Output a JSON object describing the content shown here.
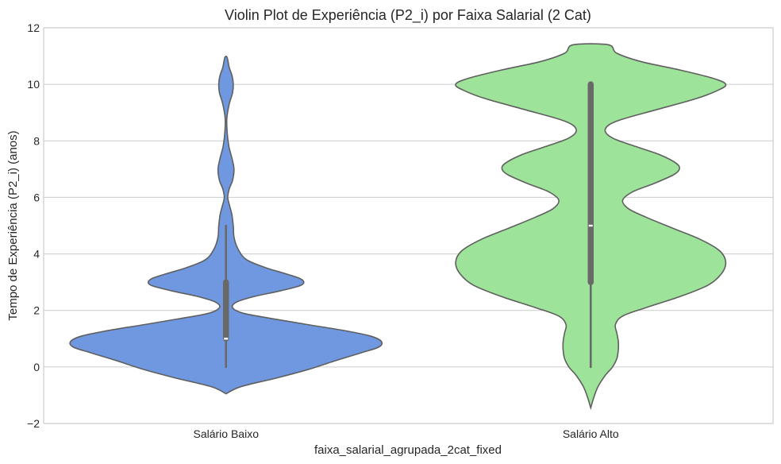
{
  "chart_data": {
    "type": "violin",
    "title": "Violin Plot de Experiência (P2_i) por Faixa Salarial (2 Cat)",
    "xlabel": "faixa_salarial_agrupada_2cat_fixed",
    "ylabel": "Tempo de Experiência (P2_i) (anos)",
    "ylim": [
      -2,
      12
    ],
    "yticks": [
      -2,
      0,
      2,
      4,
      6,
      8,
      10,
      12
    ],
    "ytick_labels": [
      "−2",
      "0",
      "2",
      "4",
      "6",
      "8",
      "10",
      "12"
    ],
    "grid": true,
    "categories": [
      "Salário Baixo",
      "Salário Alto"
    ],
    "series": [
      {
        "category": "Salário Baixo",
        "color": "#6f98e0",
        "box": {
          "min": 0,
          "q1": 1,
          "median": 1,
          "q3": 3,
          "max": 5
        },
        "density": [
          [
            -0.95,
            0.0
          ],
          [
            -0.7,
            0.1
          ],
          [
            -0.4,
            0.34
          ],
          [
            -0.1,
            0.56
          ],
          [
            0.2,
            0.74
          ],
          [
            0.5,
            0.93
          ],
          [
            0.7,
            1.05
          ],
          [
            0.9,
            1.07
          ],
          [
            1.1,
            0.99
          ],
          [
            1.3,
            0.8
          ],
          [
            1.5,
            0.56
          ],
          [
            1.7,
            0.33
          ],
          [
            1.9,
            0.12
          ],
          [
            2.1,
            0.045
          ],
          [
            2.3,
            0.075
          ],
          [
            2.5,
            0.2
          ],
          [
            2.7,
            0.38
          ],
          [
            2.9,
            0.52
          ],
          [
            3.1,
            0.52
          ],
          [
            3.3,
            0.41
          ],
          [
            3.5,
            0.28
          ],
          [
            3.8,
            0.14
          ],
          [
            4.2,
            0.08
          ],
          [
            4.6,
            0.055
          ],
          [
            5.0,
            0.05
          ],
          [
            5.4,
            0.04
          ],
          [
            5.7,
            0.025
          ],
          [
            6.0,
            0.012
          ],
          [
            6.3,
            0.022
          ],
          [
            6.6,
            0.045
          ],
          [
            7.0,
            0.055
          ],
          [
            7.4,
            0.04
          ],
          [
            7.8,
            0.02
          ],
          [
            8.3,
            0.008
          ],
          [
            8.8,
            0.006
          ],
          [
            9.3,
            0.022
          ],
          [
            9.7,
            0.045
          ],
          [
            10.0,
            0.05
          ],
          [
            10.3,
            0.042
          ],
          [
            10.6,
            0.022
          ],
          [
            10.95,
            0.008
          ]
        ]
      },
      {
        "category": "Salário Alto",
        "color": "#9de39a",
        "box": {
          "min": 0,
          "q1": 3,
          "median": 5,
          "q3": 10,
          "max": 10
        },
        "density": [
          [
            -1.45,
            0.0
          ],
          [
            -1.1,
            0.02
          ],
          [
            -0.7,
            0.05
          ],
          [
            -0.3,
            0.1
          ],
          [
            0.0,
            0.15
          ],
          [
            0.3,
            0.18
          ],
          [
            0.6,
            0.19
          ],
          [
            0.9,
            0.19
          ],
          [
            1.2,
            0.18
          ],
          [
            1.5,
            0.17
          ],
          [
            1.8,
            0.22
          ],
          [
            2.1,
            0.38
          ],
          [
            2.5,
            0.62
          ],
          [
            2.9,
            0.81
          ],
          [
            3.3,
            0.9
          ],
          [
            3.7,
            0.93
          ],
          [
            4.1,
            0.89
          ],
          [
            4.5,
            0.76
          ],
          [
            4.9,
            0.57
          ],
          [
            5.3,
            0.38
          ],
          [
            5.6,
            0.26
          ],
          [
            5.9,
            0.22
          ],
          [
            6.2,
            0.29
          ],
          [
            6.5,
            0.44
          ],
          [
            6.8,
            0.57
          ],
          [
            7.0,
            0.61
          ],
          [
            7.2,
            0.59
          ],
          [
            7.5,
            0.48
          ],
          [
            7.8,
            0.31
          ],
          [
            8.1,
            0.15
          ],
          [
            8.4,
            0.1
          ],
          [
            8.7,
            0.18
          ],
          [
            9.1,
            0.45
          ],
          [
            9.5,
            0.73
          ],
          [
            9.8,
            0.88
          ],
          [
            10.0,
            0.93
          ],
          [
            10.2,
            0.85
          ],
          [
            10.5,
            0.62
          ],
          [
            10.8,
            0.35
          ],
          [
            11.1,
            0.18
          ],
          [
            11.4,
            0.12
          ]
        ]
      }
    ]
  }
}
